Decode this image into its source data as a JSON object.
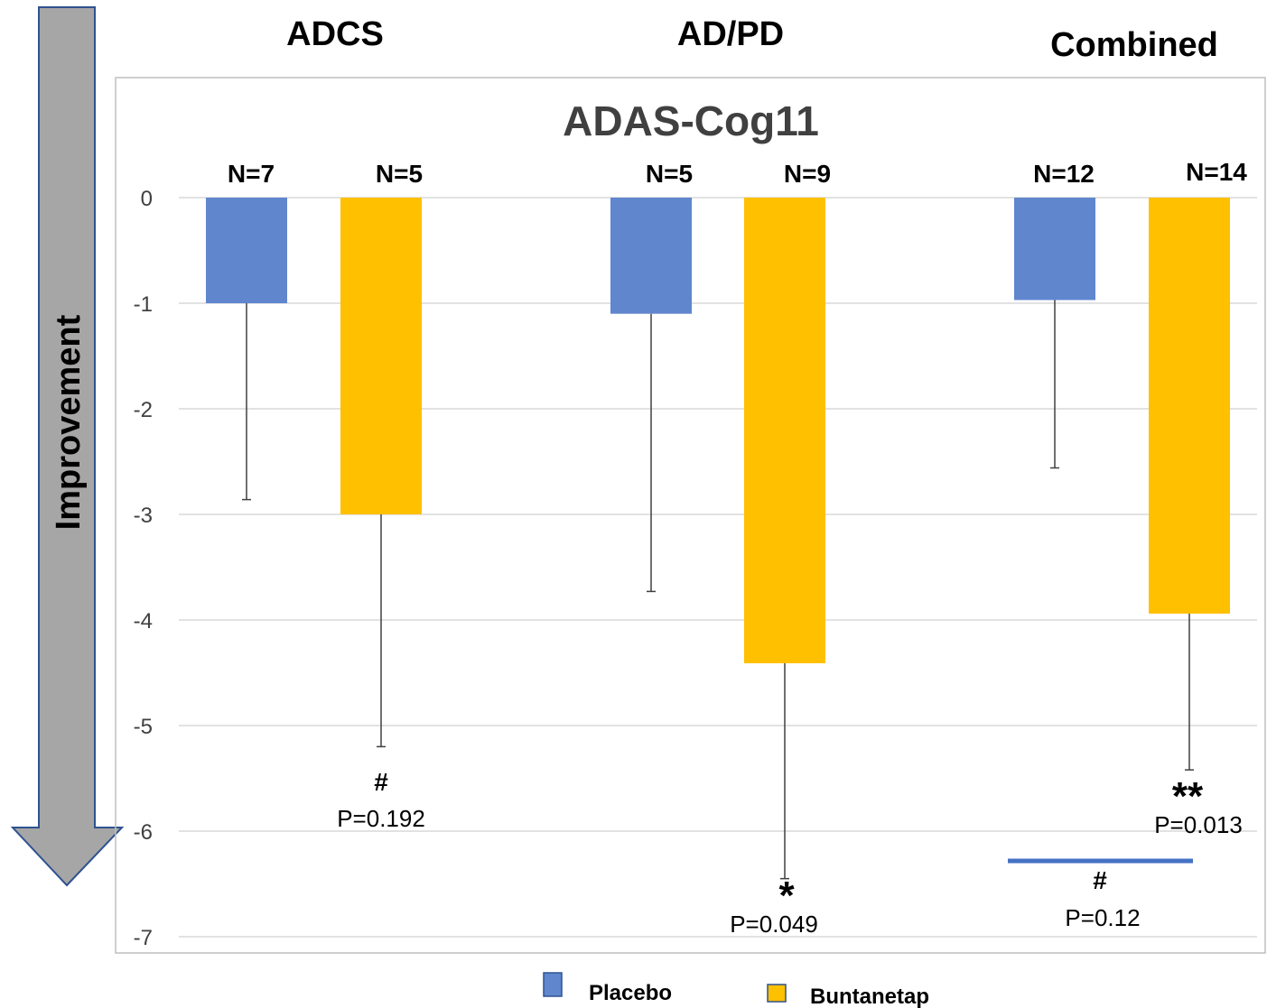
{
  "chart_data": {
    "type": "bar",
    "title": "ADAS-Cog11",
    "side_label": "Improvement",
    "group_labels": [
      "ADCS",
      "AD/PD",
      "Combined"
    ],
    "categories": [
      "ADCS",
      "AD/PD",
      "Combined"
    ],
    "ylim": [
      -7,
      0
    ],
    "yticks": [
      "0",
      "-1",
      "-2",
      "-3",
      "-4",
      "-5",
      "-6",
      "-7"
    ],
    "grid": true,
    "legend_position": "bottom",
    "series": [
      {
        "name": "Placebo",
        "color": "#6086CE",
        "values": [
          -1.0,
          -1.1,
          -0.97
        ],
        "error_low": [
          -2.86,
          -3.73,
          -2.56
        ],
        "n_labels": [
          "N=7",
          "N=5",
          "N=12"
        ]
      },
      {
        "name": "Buntanetap",
        "color": "#FFC000",
        "values": [
          -3.0,
          -4.41,
          -3.94
        ],
        "error_low": [
          -5.2,
          -6.45,
          -5.42
        ],
        "n_labels": [
          "N=5",
          "N=9",
          "N=14"
        ]
      }
    ],
    "annotations": [
      {
        "group": 0,
        "series": 1,
        "symbol": "#",
        "pvalue": "P=0.192"
      },
      {
        "group": 1,
        "series": 1,
        "symbol": "*",
        "pvalue": "P=0.049"
      },
      {
        "group": 2,
        "series": 1,
        "symbol": "**",
        "pvalue": "P=0.013"
      },
      {
        "group": 2,
        "series": "between",
        "symbol": "#",
        "pvalue": "P=0.12"
      }
    ]
  }
}
